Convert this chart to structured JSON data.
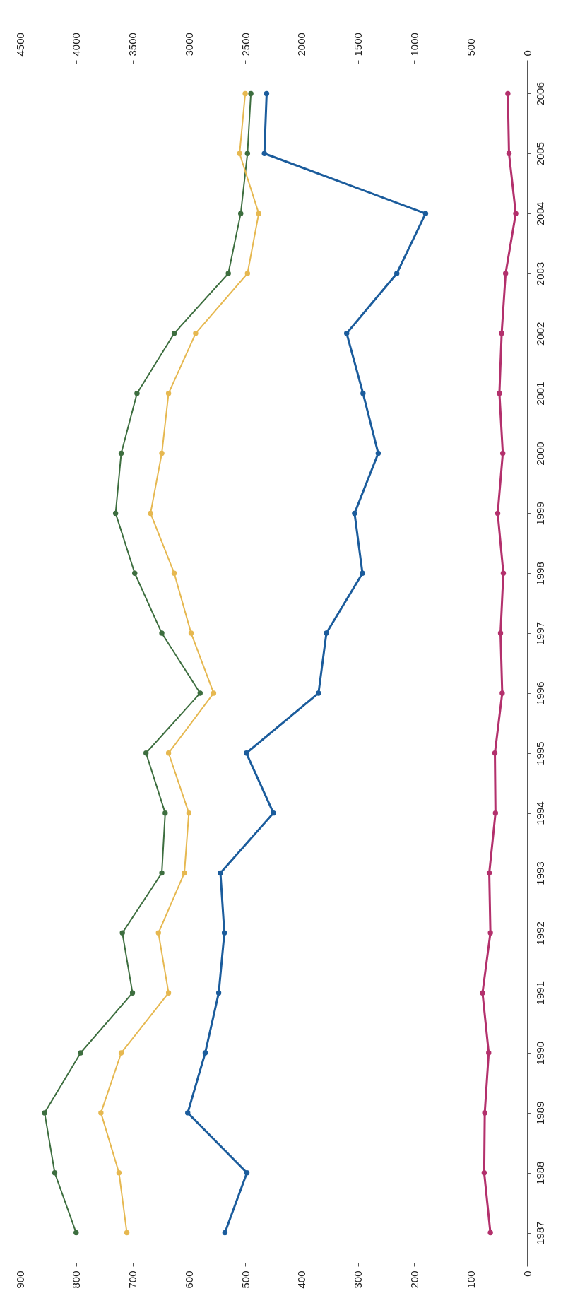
{
  "chart_data": {
    "type": "line",
    "orientation": "horizontal",
    "categories": [
      "2006",
      "2005",
      "2004",
      "2003",
      "2002",
      "2001",
      "2000",
      "1999",
      "1998",
      "1997",
      "1996",
      "1995",
      "1994",
      "1993",
      "1992",
      "1991",
      "1990",
      "1989",
      "1988",
      "1987"
    ],
    "xlim": [
      900,
      0
    ],
    "xticks": [
      900,
      800,
      700,
      600,
      500,
      400,
      300,
      200,
      100,
      0
    ],
    "x2lim": [
      4500,
      0
    ],
    "x2ticks": [
      4500,
      4000,
      3500,
      3000,
      2500,
      2000,
      1500,
      1000,
      500,
      0
    ],
    "marker": "circle",
    "series": [
      {
        "color": "#3d6e3f",
        "axis": "x2",
        "values": [
          2450,
          2480,
          2540,
          2650,
          3130,
          3460,
          3600,
          3650,
          3480,
          3240,
          2900,
          3380,
          3210,
          3240,
          3590,
          3500,
          3960,
          4280,
          4190,
          4000
        ]
      },
      {
        "color": "#e6b850",
        "axis": "x2",
        "values": [
          2500,
          2550,
          2380,
          2480,
          2940,
          3180,
          3240,
          3340,
          3130,
          2980,
          2780,
          3180,
          3000,
          3040,
          3270,
          3180,
          3600,
          3780,
          3620,
          3550
        ]
      },
      {
        "color": "#1b5c9c",
        "values": [
          462,
          466,
          180,
          231,
          320,
          291,
          264,
          306,
          292,
          356,
          370,
          498,
          450,
          544,
          537,
          547,
          571,
          602,
          497,
          536
        ]
      },
      {
        "color": "#b3306c",
        "values": [
          34,
          32,
          20,
          38,
          45,
          49,
          43,
          52,
          42,
          47,
          44,
          57,
          56,
          67,
          65,
          79,
          68,
          75,
          76,
          65
        ]
      }
    ]
  }
}
